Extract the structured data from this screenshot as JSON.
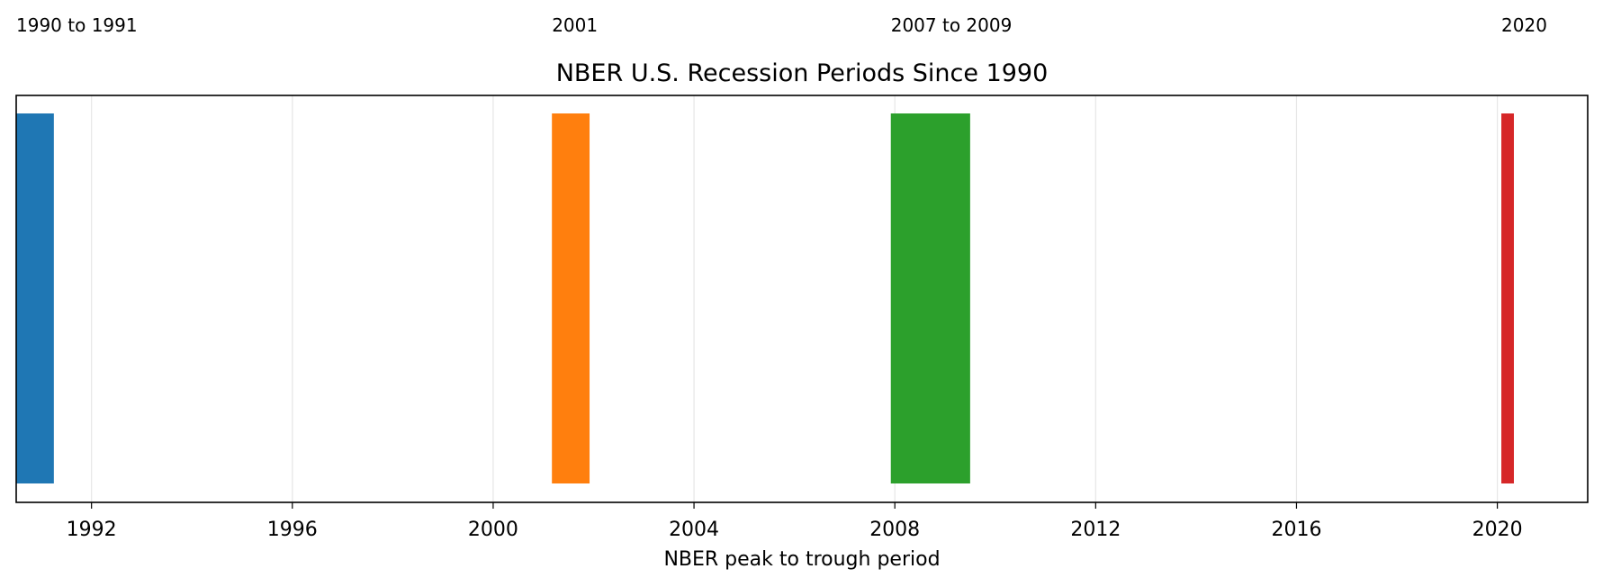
{
  "chart_data": {
    "type": "bar",
    "title": "NBER U.S. Recession Periods Since 1990",
    "xlabel": "NBER peak to trough period",
    "ylabel": "",
    "xlim": [
      1990.5,
      2021.8
    ],
    "xticks": [
      1992,
      1996,
      2000,
      2004,
      2008,
      2012,
      2016,
      2020
    ],
    "grid": "vertical",
    "periods": [
      {
        "label": "1990 to 1991",
        "start": 1990.5,
        "end": 1991.25,
        "color": "#1f77b4"
      },
      {
        "label": "2001",
        "start": 2001.17,
        "end": 2001.92,
        "color": "#ff7f0e"
      },
      {
        "label": "2007 to 2009",
        "start": 2007.92,
        "end": 2009.5,
        "color": "#2ca02c"
      },
      {
        "label": "2020",
        "start": 2020.08,
        "end": 2020.33,
        "color": "#d62728"
      }
    ]
  }
}
